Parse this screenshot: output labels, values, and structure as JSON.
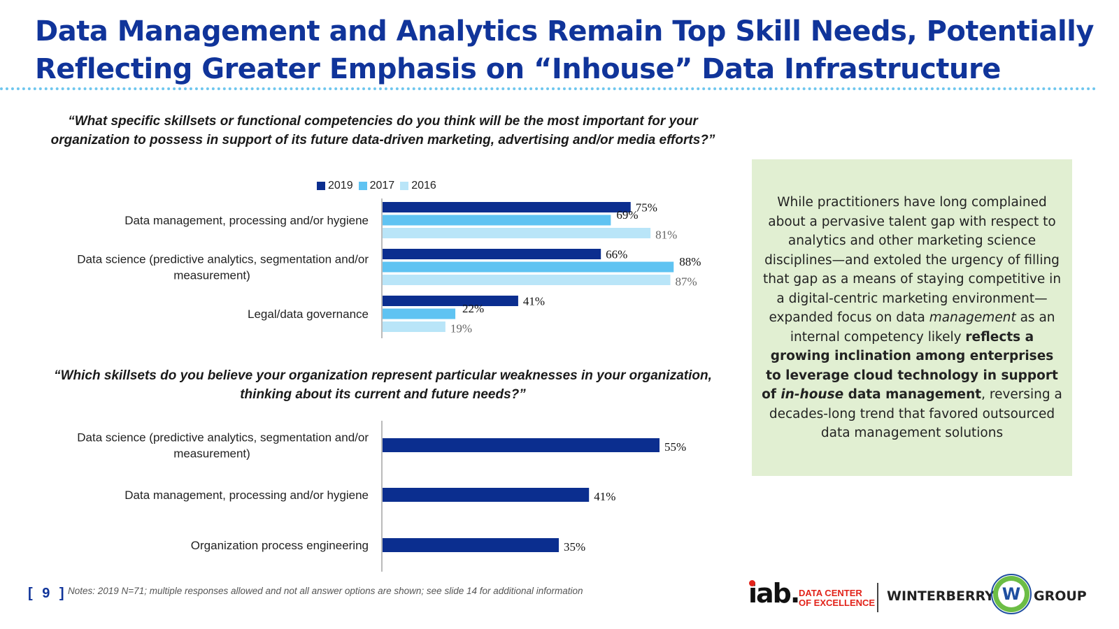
{
  "slide": {
    "title_line1": "Data Management and Analytics Remain Top Skill Needs, Potentially",
    "title_line2": "Reflecting Greater Emphasis on “Inhouse” Data Infrastructure",
    "page_number": "[ 9 ]",
    "notes": "Notes: 2019 N=71; multiple responses allowed and not all answer options are shown; see slide 14 for additional information"
  },
  "question1": "“What specific skillsets or functional competencies do you think will be the most important for your organization to possess in support of its future data-driven marketing, advertising and/or media efforts?”",
  "question2": "“Which skillsets do you believe your organization represent particular weaknesses in your organization, thinking about its current and future needs?”",
  "legend": [
    {
      "label": "2019",
      "color": "#0b2e8f"
    },
    {
      "label": "2017",
      "color": "#5fc3f2"
    },
    {
      "label": "2016",
      "color": "#b9e5f8"
    }
  ],
  "chart_data": [
    {
      "type": "bar",
      "orientation": "horizontal",
      "title": "What specific skillsets or functional competencies do you think will be the most important for your organization to possess in support of its future data-driven marketing, advertising and/or media efforts?",
      "categories": [
        "Data management, processing and/or hygiene",
        "Data science (predictive analytics, segmentation and/or measurement)",
        "Legal/data governance"
      ],
      "category_lines": [
        [
          "Data management, processing and/or hygiene"
        ],
        [
          "Data science (predictive analytics, segmentation and/or",
          "measurement)"
        ],
        [
          "Legal/data governance"
        ]
      ],
      "series": [
        {
          "name": "2019",
          "values": [
            75,
            66,
            41
          ],
          "color": "#0b2e8f"
        },
        {
          "name": "2017",
          "values": [
            69,
            88,
            22
          ],
          "color": "#5fc3f2"
        },
        {
          "name": "2016",
          "values": [
            81,
            87,
            19
          ],
          "color": "#b9e5f8"
        }
      ],
      "value_format": "%",
      "xlim": [
        0,
        100
      ],
      "legend": "top",
      "grid": false
    },
    {
      "type": "bar",
      "orientation": "horizontal",
      "title": "Which skillsets do you believe your organization represent particular weaknesses in your organization, thinking about its current and future needs?",
      "categories": [
        "Data science (predictive analytics, segmentation and/or measurement)",
        "Data management, processing and/or hygiene",
        "Organization process engineering"
      ],
      "category_lines": [
        [
          "Data science (predictive analytics, segmentation and/or",
          "measurement)"
        ],
        [
          "Data management, processing and/or hygiene"
        ],
        [
          "Organization process engineering"
        ]
      ],
      "series": [
        {
          "name": "2019",
          "values": [
            55,
            41,
            35
          ],
          "color": "#0b2e8f"
        }
      ],
      "value_format": "%",
      "xlim": [
        0,
        100
      ],
      "grid": false
    }
  ],
  "info_box": {
    "part1": "While practitioners have long complained about a pervasive talent gap with respect to analytics and other marketing science disciplines—and extoled the urgency of filling that gap as a means of staying competitive in a digital-centric marketing environment—expanded focus on data ",
    "part2_italic": "management",
    "part3": " as an internal competency likely ",
    "part4_bold": "reflects a growing inclination among enterprises to leverage cloud technology in support of ",
    "part5_bold_italic": "in-house",
    "part6_bold": " data management",
    "part7": ", reversing a decades-long trend that favored outsourced data management solutions"
  },
  "logos": {
    "iab": "iab.",
    "dce_line1": "DATA CENTER",
    "dce_line2": "OF EXCELLENCE",
    "winterberry": "WINTERBERRY",
    "w": "W",
    "group": "GROUP"
  }
}
